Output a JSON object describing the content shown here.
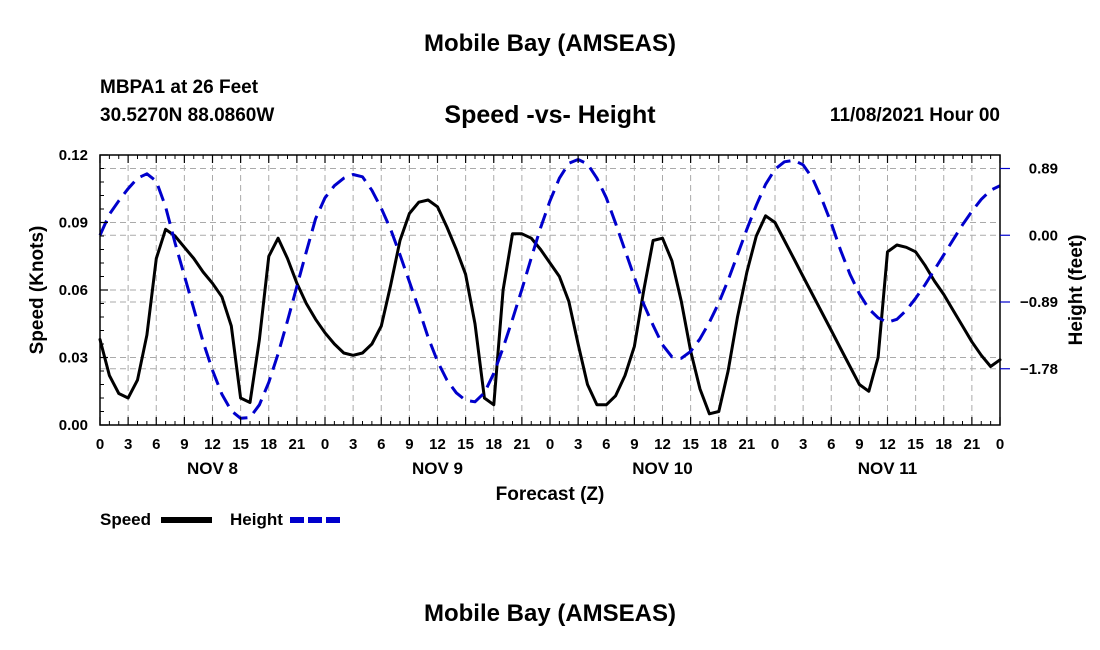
{
  "header": {
    "title": "Mobile Bay (AMSEAS)",
    "station": "MBPA1 at 26 Feet",
    "coordinates": "30.5270N  88.0860W",
    "subtitle": "Speed -vs- Height",
    "datetime": "11/08/2021 Hour 00"
  },
  "footer": {
    "title": "Mobile Bay (AMSEAS)"
  },
  "colors": {
    "speed": "#000000",
    "height": "#0000cc",
    "grid": "#aaaaaa",
    "axis": "#000000"
  },
  "chart_data": {
    "type": "line",
    "title": "Speed -vs- Height",
    "xlabel": "Forecast (Z)",
    "ylabel": "Speed (Knots)",
    "y2label": "Height (feet)",
    "xlim": [
      0,
      96
    ],
    "ylim": [
      0,
      0.12
    ],
    "y2lim": [
      -2.53,
      1.07
    ],
    "yticks": [
      0,
      0.03,
      0.06,
      0.09,
      0.12
    ],
    "ytick_labels": [
      "0.00",
      "0.03",
      "0.06",
      "0.09",
      "0.12"
    ],
    "y2ticks": [
      0.89,
      0.0,
      -0.89,
      -1.78
    ],
    "y2tick_labels": [
      "0.89",
      "0.00",
      "−0.89",
      "−1.78"
    ],
    "xticks": [
      0,
      3,
      6,
      9,
      12,
      15,
      18,
      21,
      24,
      27,
      30,
      33,
      36,
      39,
      42,
      45,
      48,
      51,
      54,
      57,
      60,
      63,
      66,
      69,
      72,
      75,
      78,
      81,
      84,
      87,
      90,
      93,
      96
    ],
    "xtick_labels": [
      "0",
      "3",
      "6",
      "9",
      "12",
      "15",
      "18",
      "21",
      "0",
      "3",
      "6",
      "9",
      "12",
      "15",
      "18",
      "21",
      "0",
      "3",
      "6",
      "9",
      "12",
      "15",
      "18",
      "21",
      "0",
      "3",
      "6",
      "9",
      "12",
      "15",
      "18",
      "21",
      "0"
    ],
    "day_labels": [
      {
        "x": 12,
        "label": "NOV 8"
      },
      {
        "x": 36,
        "label": "NOV 9"
      },
      {
        "x": 60,
        "label": "NOV 10"
      },
      {
        "x": 84,
        "label": "NOV 11"
      }
    ],
    "grid": true,
    "legend": {
      "position": "bottom-left"
    },
    "series": [
      {
        "name": "Speed",
        "axis": "left",
        "style": "solid",
        "x": [
          0,
          1,
          2,
          3,
          4,
          5,
          6,
          7,
          8,
          9,
          10,
          11,
          12,
          13,
          14,
          15,
          16,
          17,
          18,
          19,
          20,
          21,
          22,
          23,
          24,
          25,
          26,
          27,
          28,
          29,
          30,
          31,
          32,
          33,
          34,
          35,
          36,
          37,
          38,
          39,
          40,
          41,
          42,
          43,
          44,
          45,
          46,
          47,
          48,
          49,
          50,
          51,
          52,
          53,
          54,
          55,
          56,
          57,
          58,
          59,
          60,
          61,
          62,
          63,
          64,
          65,
          66,
          67,
          68,
          69,
          70,
          71,
          72,
          73,
          74,
          75,
          76,
          77,
          78,
          79,
          80,
          81,
          82,
          83,
          84,
          85,
          86,
          87,
          88,
          89,
          90,
          91,
          92,
          93,
          94,
          95,
          96
        ],
        "values": [
          0.038,
          0.022,
          0.014,
          0.012,
          0.02,
          0.04,
          0.074,
          0.087,
          0.084,
          0.079,
          0.074,
          0.068,
          0.063,
          0.057,
          0.044,
          0.012,
          0.01,
          0.038,
          0.075,
          0.083,
          0.074,
          0.063,
          0.054,
          0.047,
          0.041,
          0.036,
          0.032,
          0.031,
          0.032,
          0.036,
          0.044,
          0.062,
          0.082,
          0.094,
          0.099,
          0.1,
          0.097,
          0.088,
          0.078,
          0.067,
          0.045,
          0.012,
          0.009,
          0.06,
          0.085,
          0.085,
          0.083,
          0.078,
          0.072,
          0.066,
          0.055,
          0.036,
          0.018,
          0.009,
          0.009,
          0.013,
          0.022,
          0.035,
          0.06,
          0.082,
          0.083,
          0.073,
          0.055,
          0.033,
          0.016,
          0.005,
          0.006,
          0.024,
          0.048,
          0.068,
          0.084,
          0.093,
          0.09,
          0.082,
          0.074,
          0.066,
          0.058,
          0.05,
          0.042,
          0.034,
          0.026,
          0.018,
          0.015,
          0.03,
          0.077,
          0.08,
          0.079,
          0.077,
          0.071,
          0.064,
          0.058,
          0.051,
          0.044,
          0.037,
          0.031,
          0.026,
          0.029
        ]
      },
      {
        "name": "Height",
        "axis": "right",
        "style": "dashed",
        "x": [
          0,
          1,
          2,
          3,
          4,
          5,
          6,
          7,
          8,
          9,
          10,
          11,
          12,
          13,
          14,
          15,
          16,
          17,
          18,
          19,
          20,
          21,
          22,
          23,
          24,
          25,
          26,
          27,
          28,
          29,
          30,
          31,
          32,
          33,
          34,
          35,
          36,
          37,
          38,
          39,
          40,
          41,
          42,
          43,
          44,
          45,
          46,
          47,
          48,
          49,
          50,
          51,
          52,
          53,
          54,
          55,
          56,
          57,
          58,
          59,
          60,
          61,
          62,
          63,
          64,
          65,
          66,
          67,
          68,
          69,
          70,
          71,
          72,
          73,
          74,
          75,
          76,
          77,
          78,
          79,
          80,
          81,
          82,
          83,
          84,
          85,
          86,
          87,
          88,
          89,
          90,
          91,
          92,
          93,
          94,
          95,
          96
        ],
        "values": [
          0.0,
          0.28,
          0.46,
          0.62,
          0.76,
          0.82,
          0.72,
          0.38,
          -0.1,
          -0.54,
          -0.98,
          -1.42,
          -1.8,
          -2.12,
          -2.34,
          -2.44,
          -2.43,
          -2.26,
          -1.96,
          -1.58,
          -1.14,
          -0.68,
          -0.22,
          0.22,
          0.5,
          0.66,
          0.76,
          0.81,
          0.78,
          0.6,
          0.36,
          0.08,
          -0.26,
          -0.62,
          -0.98,
          -1.36,
          -1.68,
          -1.93,
          -2.1,
          -2.2,
          -2.22,
          -2.1,
          -1.84,
          -1.5,
          -1.12,
          -0.72,
          -0.3,
          0.1,
          0.46,
          0.76,
          0.96,
          1.01,
          0.95,
          0.76,
          0.5,
          0.16,
          -0.2,
          -0.56,
          -0.92,
          -1.2,
          -1.46,
          -1.62,
          -1.64,
          -1.55,
          -1.38,
          -1.16,
          -0.9,
          -0.6,
          -0.26,
          0.08,
          0.4,
          0.68,
          0.88,
          0.98,
          1.0,
          0.94,
          0.76,
          0.48,
          0.16,
          -0.2,
          -0.52,
          -0.78,
          -0.98,
          -1.1,
          -1.16,
          -1.12,
          -1.0,
          -0.84,
          -0.66,
          -0.46,
          -0.26,
          -0.06,
          0.14,
          0.32,
          0.48,
          0.6,
          0.66
        ]
      }
    ]
  }
}
